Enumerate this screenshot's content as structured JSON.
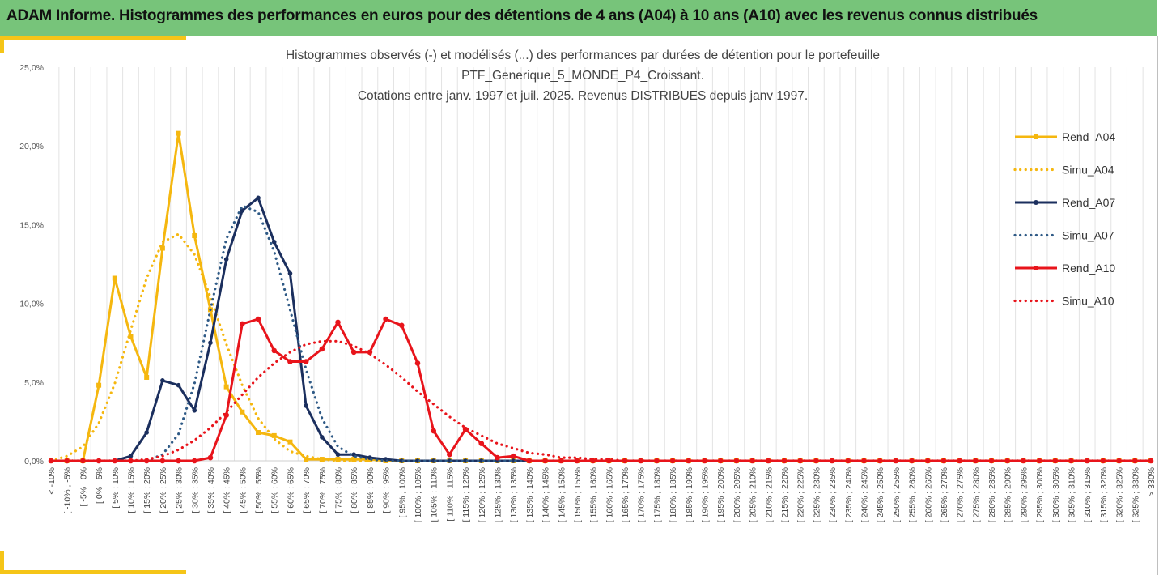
{
  "banner": {
    "title": "ADAM Informe. Histogrammes des performances en euros pour des détentions de 4 ans (A04) à 10 ans (A10) avec les revenus connus distribués"
  },
  "chart_data": {
    "type": "line",
    "title": [
      "Histogrammes observés (-) et modélisés (...) des performances par durées de détention pour le portefeuille",
      "PTF_Generique_5_MONDE_P4_Croissant.",
      "Cotations entre janv. 1997 et juil. 2025. Revenus DISTRIBUES depuis janv 1997."
    ],
    "xlabel": "",
    "ylabel": "",
    "ylim": [
      0,
      0.25
    ],
    "yticks": [
      "0,0%",
      "5,0%",
      "10,0%",
      "15,0%",
      "20,0%",
      "25,0%"
    ],
    "grid": "vertical",
    "legend_position": "right",
    "categories": [
      "< -10%",
      "[ -10% ; -5%",
      "[ -5% ; 0%",
      "[ 0% ; 5%",
      "[ 5% ; 10%",
      "[ 10% ; 15%",
      "[ 15% ; 20%",
      "[ 20% ; 25%",
      "[ 25% ; 30%",
      "[ 30% ; 35%",
      "[ 35% ; 40%",
      "[ 40% ; 45%",
      "[ 45% ; 50%",
      "[ 50% ; 55%",
      "[ 55% ; 60%",
      "[ 60% ; 65%",
      "[ 65% ; 70%",
      "[ 70% ; 75%",
      "[ 75% ; 80%",
      "[ 80% ; 85%",
      "[ 85% ; 90%",
      "[ 90% ; 95%",
      "[ 95% ; 100%",
      "[ 100% ; 105%",
      "[ 105% ; 110%",
      "[ 110% ; 115%",
      "[ 115% ; 120%",
      "[ 120% ; 125%",
      "[ 125% ; 130%",
      "[ 130% ; 135%",
      "[ 135% ; 140%",
      "[ 140% ; 145%",
      "[ 145% ; 150%",
      "[ 150% ; 155%",
      "[ 155% ; 160%",
      "[ 160% ; 165%",
      "[ 165% ; 170%",
      "[ 170% ; 175%",
      "[ 175% ; 180%",
      "[ 180% ; 185%",
      "[ 185% ; 190%",
      "[ 190% ; 195%",
      "[ 195% ; 200%",
      "[ 200% ; 205%",
      "[ 205% ; 210%",
      "[ 210% ; 215%",
      "[ 215% ; 220%",
      "[ 220% ; 225%",
      "[ 225% ; 230%",
      "[ 230% ; 235%",
      "[ 235% ; 240%",
      "[ 240% ; 245%",
      "[ 245% ; 250%",
      "[ 250% ; 255%",
      "[ 255% ; 260%",
      "[ 260% ; 265%",
      "[ 265% ; 270%",
      "[ 270% ; 275%",
      "[ 275% ; 280%",
      "[ 280% ; 285%",
      "[ 285% ; 290%",
      "[ 290% ; 295%",
      "[ 295% ; 300%",
      "[ 300% ; 305%",
      "[ 305% ; 310%",
      "[ 310% ; 315%",
      "[ 315% ; 320%",
      "[ 320% ; 325%",
      "[ 325% ; 330%",
      "> 330%"
    ],
    "series": [
      {
        "name": "Rend_A04",
        "style": "solid-marker",
        "color": "#f5b70f",
        "values": [
          0,
          0,
          0,
          0.048,
          0.116,
          0.079,
          0.053,
          0.135,
          0.208,
          0.143,
          0.096,
          0.047,
          0.031,
          0.018,
          0.016,
          0.012,
          0.001,
          0.001,
          0.001,
          0.001,
          0.001,
          0,
          0,
          0,
          0,
          0,
          0,
          0,
          0,
          0,
          0,
          0,
          0,
          0,
          0,
          0,
          0,
          0,
          0,
          0,
          0,
          0,
          0,
          0,
          0,
          0,
          0,
          0,
          0,
          0,
          0,
          0,
          0,
          0,
          0,
          0,
          0,
          0,
          0,
          0,
          0,
          0,
          0,
          0,
          0,
          0,
          0,
          0,
          0,
          0
        ]
      },
      {
        "name": "Simu_A04",
        "style": "dotted",
        "color": "#f5b70f",
        "values": [
          0,
          0.003,
          0.009,
          0.024,
          0.049,
          0.083,
          0.116,
          0.139,
          0.144,
          0.131,
          0.104,
          0.074,
          0.048,
          0.027,
          0.014,
          0.006,
          0.003,
          0.001,
          0,
          0,
          0,
          0,
          0,
          0,
          0,
          0,
          0,
          0,
          0,
          0,
          0,
          0,
          0,
          0,
          0,
          0,
          0,
          0,
          0,
          0,
          0,
          0,
          0,
          0,
          0,
          0,
          0,
          0,
          0,
          0,
          0,
          0,
          0,
          0,
          0,
          0,
          0,
          0,
          0,
          0,
          0,
          0,
          0,
          0,
          0,
          0,
          0,
          0,
          0,
          0
        ]
      },
      {
        "name": "Rend_A07",
        "style": "solid-marker",
        "color": "#1b2f5e",
        "values": [
          0,
          0,
          0,
          0,
          0,
          0.003,
          0.018,
          0.051,
          0.048,
          0.032,
          0.075,
          0.128,
          0.159,
          0.167,
          0.139,
          0.119,
          0.035,
          0.015,
          0.004,
          0.004,
          0.002,
          0.001,
          0,
          0,
          0,
          0,
          0,
          0,
          0,
          0,
          0,
          0,
          0,
          0,
          0,
          0,
          0,
          0,
          0,
          0,
          0,
          0,
          0,
          0,
          0,
          0,
          0,
          0,
          0,
          0,
          0,
          0,
          0,
          0,
          0,
          0,
          0,
          0,
          0,
          0,
          0,
          0,
          0,
          0,
          0,
          0,
          0,
          0,
          0,
          0
        ]
      },
      {
        "name": "Simu_A07",
        "style": "dotted",
        "color": "#2f5a86",
        "values": [
          0,
          0,
          0,
          0,
          0,
          0,
          0,
          0.004,
          0.017,
          0.049,
          0.096,
          0.141,
          0.162,
          0.158,
          0.133,
          0.096,
          0.058,
          0.027,
          0.009,
          0.003,
          0.001,
          0,
          0,
          0,
          0,
          0,
          0,
          0,
          0,
          0,
          0,
          0,
          0,
          0,
          0,
          0,
          0,
          0,
          0,
          0,
          0,
          0,
          0,
          0,
          0,
          0,
          0,
          0,
          0,
          0,
          0,
          0,
          0,
          0,
          0,
          0,
          0,
          0,
          0,
          0,
          0,
          0,
          0,
          0,
          0,
          0,
          0,
          0,
          0,
          0
        ]
      },
      {
        "name": "Rend_A10",
        "style": "solid-marker",
        "color": "#e8141b",
        "values": [
          0,
          0,
          0,
          0,
          0,
          0,
          0,
          0,
          0,
          0,
          0.002,
          0.029,
          0.087,
          0.09,
          0.07,
          0.063,
          0.063,
          0.071,
          0.088,
          0.069,
          0.069,
          0.09,
          0.086,
          0.062,
          0.019,
          0.004,
          0.02,
          0.011,
          0.002,
          0.003,
          0,
          0,
          0,
          0,
          0,
          0,
          0,
          0,
          0,
          0,
          0,
          0,
          0,
          0,
          0,
          0,
          0,
          0,
          0,
          0,
          0,
          0,
          0,
          0,
          0,
          0,
          0,
          0,
          0,
          0,
          0,
          0,
          0,
          0,
          0,
          0,
          0,
          0,
          0,
          0
        ]
      },
      {
        "name": "Simu_A10",
        "style": "dotted",
        "color": "#e8141b",
        "values": [
          0,
          0,
          0,
          0,
          0,
          0,
          0.001,
          0.003,
          0.007,
          0.013,
          0.021,
          0.031,
          0.042,
          0.053,
          0.062,
          0.069,
          0.074,
          0.076,
          0.076,
          0.073,
          0.068,
          0.061,
          0.053,
          0.044,
          0.036,
          0.028,
          0.021,
          0.016,
          0.011,
          0.008,
          0.005,
          0.004,
          0.002,
          0.002,
          0.001,
          0.001,
          0,
          0,
          0,
          0,
          0,
          0,
          0,
          0,
          0,
          0,
          0,
          0,
          0,
          0,
          0,
          0,
          0,
          0,
          0,
          0,
          0,
          0,
          0,
          0,
          0,
          0,
          0,
          0,
          0,
          0,
          0,
          0,
          0,
          0
        ]
      }
    ]
  }
}
